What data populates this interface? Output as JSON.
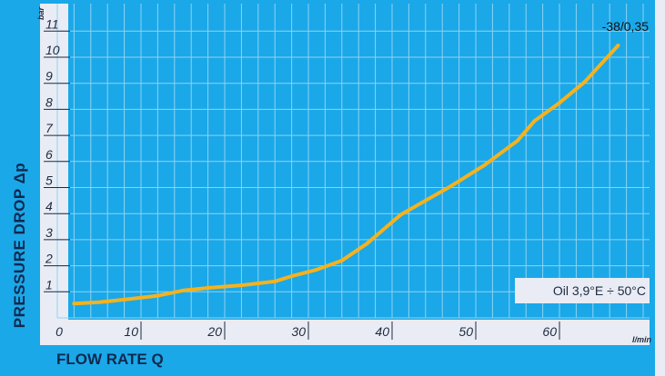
{
  "chart_data": {
    "type": "line",
    "xlabel": "FLOW RATE Q",
    "ylabel": "PRESSURE DROP Δp",
    "x_unit": "l/min",
    "y_unit": "bar",
    "xlim": [
      0,
      70
    ],
    "ylim": [
      0,
      11.5
    ],
    "x_ticks": [
      "0",
      "10",
      "20",
      "30",
      "40",
      "50",
      "60"
    ],
    "x_tick_values": [
      0,
      10,
      20,
      30,
      40,
      50,
      60
    ],
    "y_ticks": [
      "1",
      "2",
      "3",
      "4",
      "5",
      "6",
      "7",
      "8",
      "9",
      "10",
      "11"
    ],
    "y_tick_values": [
      1,
      2,
      3,
      4,
      5,
      6,
      7,
      8,
      9,
      10,
      11
    ],
    "grid": true,
    "legend_text": "Oil 3,9°E ÷ 50°C",
    "legend_position": "bottom-right",
    "annotation": "-38/0,35",
    "colors": {
      "line": "#f5b21e",
      "plot_background": "#1aa8e8",
      "grid": "#8fd2f2",
      "frame": "#1aa8e8"
    },
    "series": [
      {
        "x": [
          2,
          5,
          8,
          12,
          15,
          18,
          22,
          26,
          28,
          31,
          34,
          37,
          41,
          44,
          47,
          51,
          55,
          57,
          60,
          63,
          67
        ],
        "y": [
          0.55,
          0.6,
          0.7,
          0.85,
          1.05,
          1.15,
          1.25,
          1.4,
          1.6,
          1.85,
          2.2,
          2.85,
          3.95,
          4.5,
          5.05,
          5.85,
          6.8,
          7.55,
          8.25,
          9.05,
          10.45
        ]
      }
    ]
  }
}
